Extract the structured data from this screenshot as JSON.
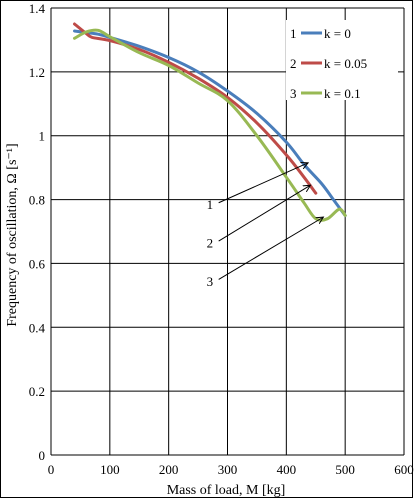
{
  "chart_data": {
    "type": "line",
    "xlabel": "Mass of load, M [kg]",
    "ylabel": "Frequency of oscillation, Ω [s⁻¹]",
    "xlim": [
      0,
      600
    ],
    "ylim": [
      0,
      1.4
    ],
    "xticks": [
      0,
      100,
      200,
      300,
      400,
      500,
      600
    ],
    "yticks": [
      0,
      0.2,
      0.4,
      0.6,
      0.8,
      1,
      1.2,
      1.4
    ],
    "xtick_labels": [
      "0",
      "100",
      "200",
      "300",
      "400",
      "500",
      "600"
    ],
    "ytick_labels": [
      "0",
      "0.2",
      "0.4",
      "0.6",
      "0.8",
      "1",
      "1.2",
      "1.4"
    ],
    "grid": true,
    "legend_position": "top-right",
    "series": [
      {
        "id": "1",
        "name": "k = 0",
        "color": "#4a7ebb",
        "x": [
          40,
          60,
          80,
          100,
          150,
          200,
          250,
          300,
          350,
          400,
          430,
          460,
          480,
          500
        ],
        "y": [
          1.328,
          1.323,
          1.318,
          1.308,
          1.28,
          1.245,
          1.2,
          1.14,
          1.07,
          0.98,
          0.91,
          0.85,
          0.8,
          0.75
        ]
      },
      {
        "id": "2",
        "name": "k = 0.05",
        "color": "#be4b48",
        "x": [
          40,
          60,
          70,
          100,
          150,
          200,
          250,
          300,
          350,
          400,
          430,
          450
        ],
        "y": [
          1.35,
          1.32,
          1.308,
          1.298,
          1.27,
          1.23,
          1.18,
          1.12,
          1.04,
          0.94,
          0.87,
          0.82
        ]
      },
      {
        "id": "3",
        "name": "k = 0.1",
        "color": "#98b954",
        "x": [
          40,
          60,
          80,
          100,
          150,
          200,
          250,
          300,
          350,
          400,
          430,
          450,
          470,
          490,
          500
        ],
        "y": [
          1.305,
          1.325,
          1.33,
          1.31,
          1.26,
          1.22,
          1.165,
          1.11,
          1.0,
          0.87,
          0.79,
          0.74,
          0.74,
          0.77,
          0.75
        ]
      }
    ],
    "annotations": [
      {
        "label": "1",
        "text_x": 270,
        "text_y": 0.77,
        "arrow_from": [
          285,
          0.79
        ],
        "arrow_to": [
          437,
          0.915
        ]
      },
      {
        "label": "2",
        "text_x": 270,
        "text_y": 0.65,
        "arrow_from": [
          285,
          0.67
        ],
        "arrow_to": [
          441,
          0.845
        ]
      },
      {
        "label": "3",
        "text_x": 270,
        "text_y": 0.53,
        "arrow_from": [
          285,
          0.55
        ],
        "arrow_to": [
          463,
          0.745
        ]
      }
    ]
  }
}
